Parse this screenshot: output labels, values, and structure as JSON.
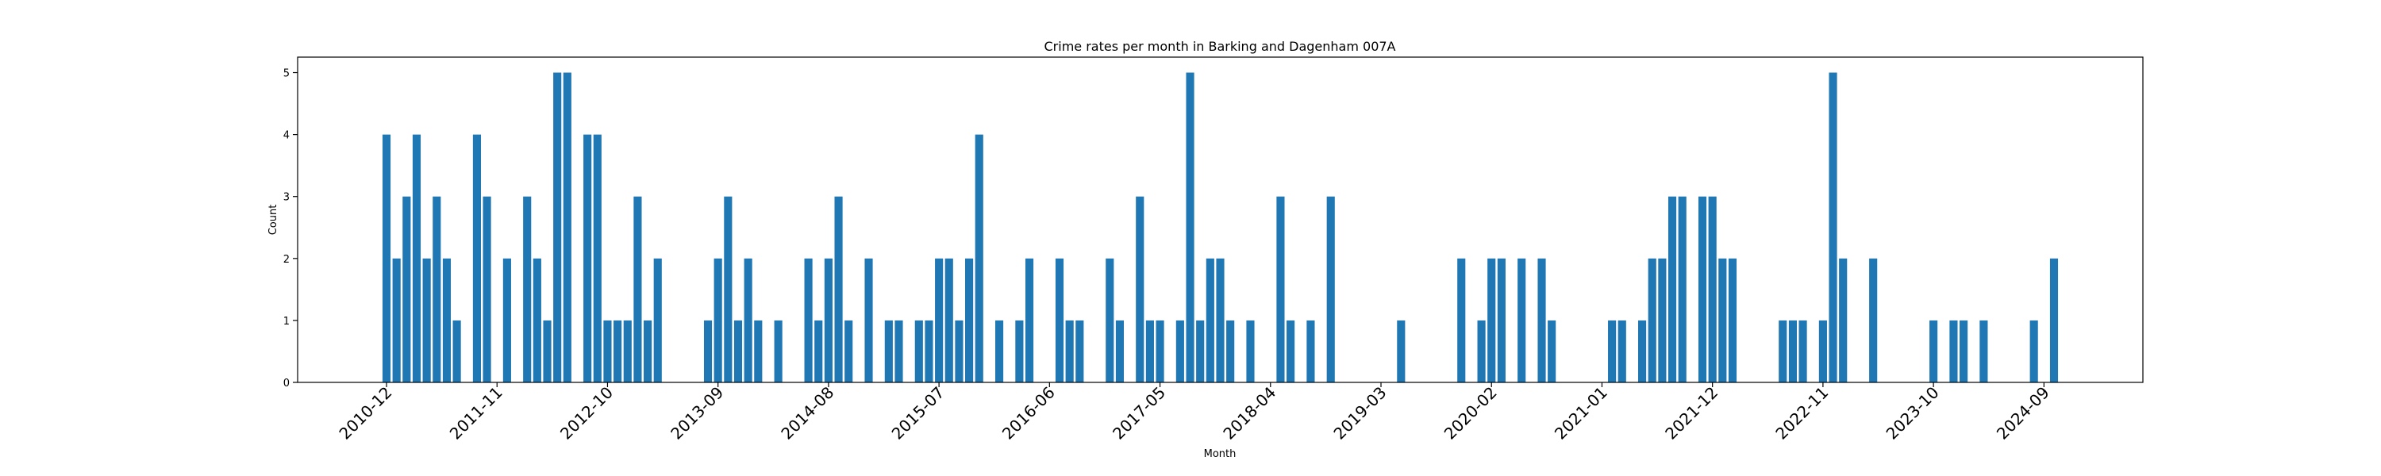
{
  "chart_data": {
    "type": "bar",
    "title": "Crime rates per month in Barking and Dagenham 007A",
    "xlabel": "Month",
    "ylabel": "Count",
    "ylim": [
      0,
      5.25
    ],
    "yticks": [
      "0",
      "1",
      "2",
      "3",
      "4",
      "5"
    ],
    "xticks": [
      "2010-12",
      "2011-11",
      "2012-10",
      "2013-09",
      "2014-08",
      "2015-07",
      "2016-06",
      "2017-05",
      "2018-04",
      "2019-03",
      "2020-02",
      "2021-01",
      "2021-12",
      "2022-11",
      "2023-10",
      "2024-09"
    ],
    "grid": false,
    "bar_color": "#1f77b4",
    "x": [
      "2010-12",
      "2011-01",
      "2011-02",
      "2011-03",
      "2011-04",
      "2011-05",
      "2011-06",
      "2011-07",
      "2011-09",
      "2011-10",
      "2011-12",
      "2012-02",
      "2012-03",
      "2012-04",
      "2012-05",
      "2012-06",
      "2012-08",
      "2012-09",
      "2012-10",
      "2012-11",
      "2012-12",
      "2013-01",
      "2013-02",
      "2013-03",
      "2013-08",
      "2013-09",
      "2013-10",
      "2013-11",
      "2013-12",
      "2014-01",
      "2014-03",
      "2014-06",
      "2014-07",
      "2014-08",
      "2014-09",
      "2014-10",
      "2014-12",
      "2015-02",
      "2015-03",
      "2015-05",
      "2015-06",
      "2015-07",
      "2015-08",
      "2015-09",
      "2015-10",
      "2015-11",
      "2016-01",
      "2016-03",
      "2016-04",
      "2016-07",
      "2016-08",
      "2016-09",
      "2016-12",
      "2017-01",
      "2017-03",
      "2017-04",
      "2017-05",
      "2017-07",
      "2017-08",
      "2017-09",
      "2017-10",
      "2017-11",
      "2017-12",
      "2018-02",
      "2018-05",
      "2018-06",
      "2018-08",
      "2018-10",
      "2019-05",
      "2019-11",
      "2020-01",
      "2020-02",
      "2020-03",
      "2020-05",
      "2020-07",
      "2020-08",
      "2021-02",
      "2021-03",
      "2021-05",
      "2021-06",
      "2021-07",
      "2021-08",
      "2021-09",
      "2021-11",
      "2021-12",
      "2022-01",
      "2022-02",
      "2022-07",
      "2022-08",
      "2022-09",
      "2022-11",
      "2022-12",
      "2023-01",
      "2023-04",
      "2023-10",
      "2023-12",
      "2024-01",
      "2024-03",
      "2024-08",
      "2024-10"
    ],
    "values": [
      4,
      2,
      3,
      4,
      2,
      3,
      2,
      1,
      4,
      3,
      2,
      3,
      2,
      1,
      5,
      5,
      4,
      4,
      1,
      1,
      1,
      3,
      1,
      2,
      1,
      2,
      3,
      1,
      2,
      1,
      1,
      2,
      1,
      2,
      3,
      1,
      2,
      1,
      1,
      1,
      1,
      2,
      2,
      1,
      2,
      4,
      1,
      1,
      2,
      2,
      1,
      1,
      2,
      1,
      3,
      1,
      1,
      1,
      5,
      1,
      2,
      2,
      1,
      1,
      3,
      1,
      1,
      3,
      1,
      2,
      1,
      2,
      2,
      2,
      2,
      1,
      1,
      1,
      1,
      2,
      2,
      3,
      3,
      3,
      3,
      2,
      2,
      1,
      1,
      1,
      1,
      5,
      2,
      2,
      1,
      1,
      1,
      1,
      1,
      2
    ]
  }
}
